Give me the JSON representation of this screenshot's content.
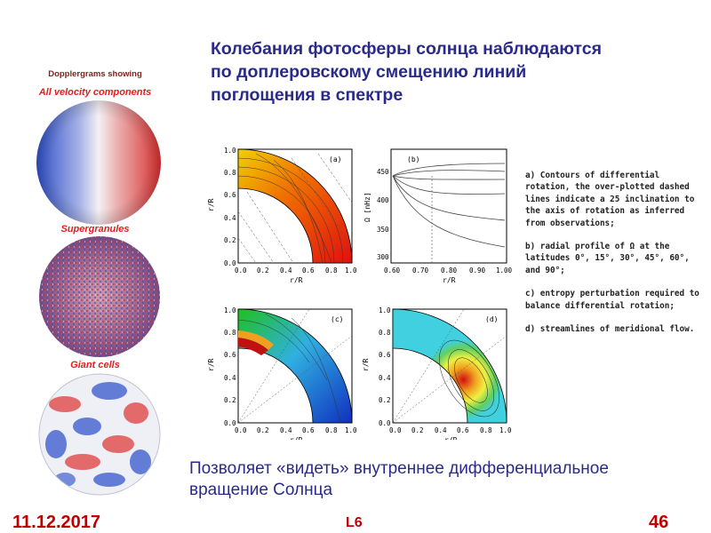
{
  "slide": {
    "title": "Колебания фотосферы солнца наблюдаются\nпо доплеровскому смещению линий\nпоглощения  в спектре",
    "caption": "Позволяет «видеть» внутреннее дифференциальное\nвращение Солнца",
    "date": "11.12.2017",
    "lecture": "L6",
    "page_number": "46"
  },
  "left_panel": {
    "heading": "Dopplergrams showing",
    "label_velocity": "All velocity components",
    "label_supergranules": "Supergranules",
    "label_giant": "Giant cells"
  },
  "figure": {
    "panel_a_tag": "(a)",
    "panel_b_tag": "(b)",
    "panel_c_tag": "(c)",
    "panel_d_tag": "(d)",
    "axis_label_r": "r/R",
    "axis_label_omega": "Ω [nHz]",
    "quarter_ticks": [
      "0.0",
      "0.2",
      "0.4",
      "0.6",
      "0.8",
      "1.0"
    ],
    "b_xticks": [
      "0.60",
      "0.70",
      "0.80",
      "0.90",
      "1.00"
    ],
    "b_yticks": [
      "300",
      "350",
      "400",
      "450"
    ]
  },
  "descriptions": [
    " a) Contours of differential rotation, the over-plotted dashed lines indicate a 25 inclination to the axis of rotation as inferred from observations;",
    "b) radial profile of Ω at the latitudes 0°, 15°, 30°, 45°, 60°, and 90°;",
    "c) entropy perturbation required to balance differential rotation;",
    "d) streamlines of meridional flow."
  ],
  "colors": {
    "title": "#2a2a8a",
    "footer": "#c00000"
  }
}
